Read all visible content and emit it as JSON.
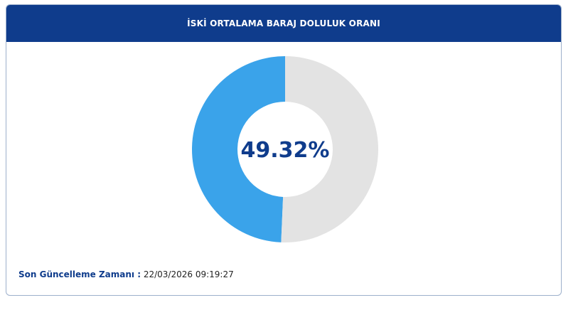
{
  "chart_data": {
    "type": "donut",
    "title": "İSKİ ORTALAMA BARAJ DOLULUK ORANI",
    "values": [
      49.32,
      50.68
    ],
    "value_labels": [
      "49.32%",
      null
    ],
    "colors": [
      "#3aa3ea",
      "#e3e3e3"
    ],
    "footer_label": "Son Güncelleme Zamanı :",
    "footer_value": "22/03/2026 09:19:27"
  }
}
